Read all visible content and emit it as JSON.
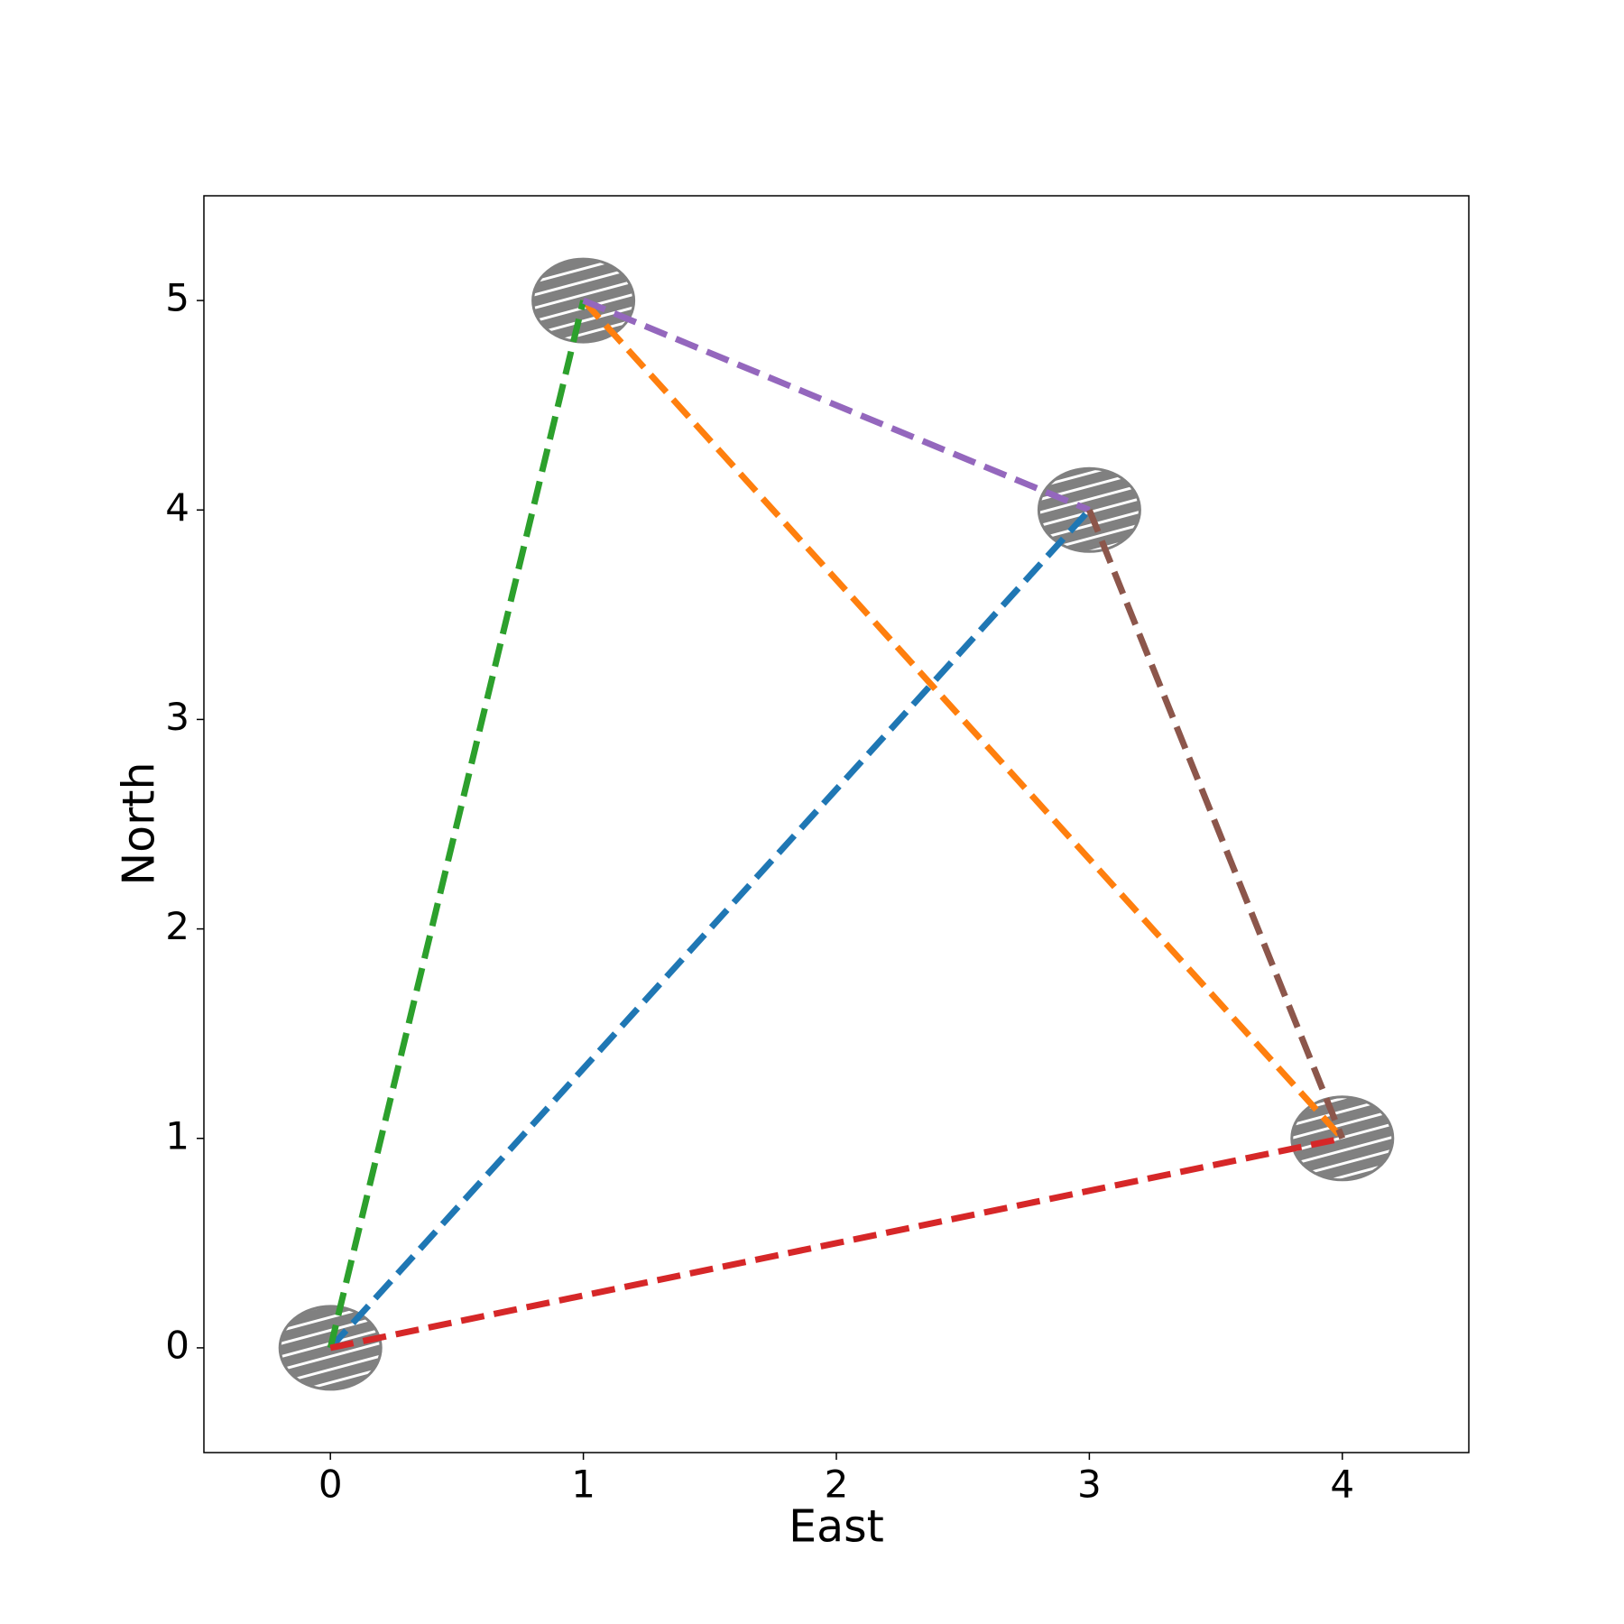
{
  "chart_data": {
    "type": "line",
    "x_label": "East",
    "y_label": "North",
    "xlim": [
      -0.5,
      4.5
    ],
    "ylim": [
      -0.5,
      5.5
    ],
    "xticks": [
      0,
      1,
      2,
      3,
      4
    ],
    "yticks": [
      0,
      1,
      2,
      3,
      4,
      5
    ],
    "nodes": {
      "x": [
        0,
        1,
        3,
        4
      ],
      "y": [
        0,
        5,
        4,
        1
      ],
      "color": "#808080"
    },
    "series": [
      {
        "color": "#1f77b4",
        "x": [
          0,
          3
        ],
        "values": [
          0,
          4
        ]
      },
      {
        "color": "#ff7f0e",
        "x": [
          1,
          4
        ],
        "values": [
          5,
          1
        ]
      },
      {
        "color": "#2ca02c",
        "x": [
          0,
          1
        ],
        "values": [
          0,
          5
        ]
      },
      {
        "color": "#d62728",
        "x": [
          0,
          4
        ],
        "values": [
          0,
          1
        ]
      },
      {
        "color": "#9467bd",
        "x": [
          1,
          3
        ],
        "values": [
          5,
          4
        ]
      },
      {
        "color": "#8c564b",
        "x": [
          3,
          4
        ],
        "values": [
          4,
          1
        ]
      }
    ]
  }
}
